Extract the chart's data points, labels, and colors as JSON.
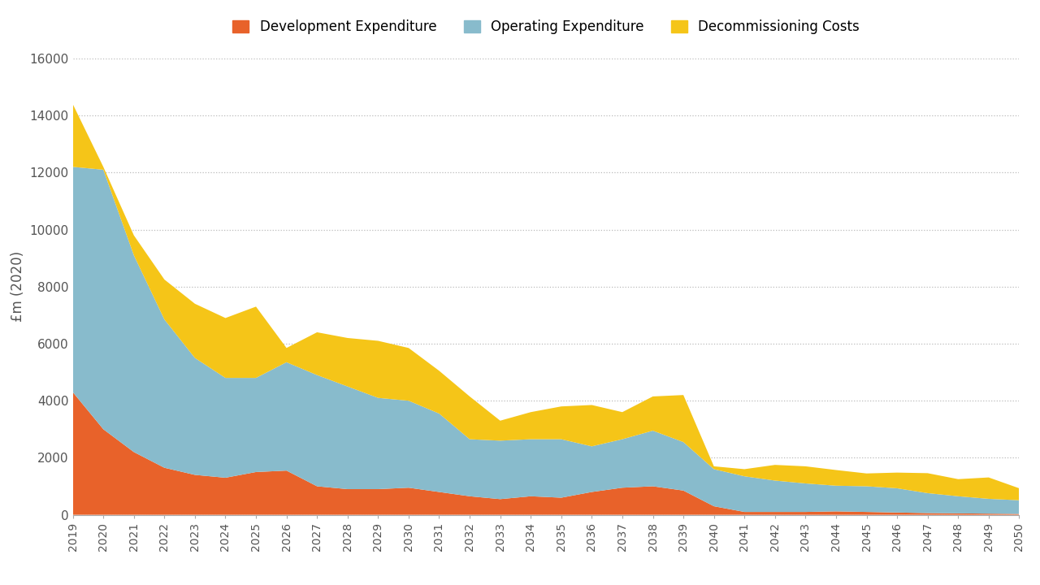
{
  "years": [
    2019,
    2020,
    2021,
    2022,
    2023,
    2024,
    2025,
    2026,
    2027,
    2028,
    2029,
    2030,
    2031,
    2032,
    2033,
    2034,
    2035,
    2036,
    2037,
    2038,
    2039,
    2040,
    2041,
    2042,
    2043,
    2044,
    2045,
    2046,
    2047,
    2048,
    2049,
    2050
  ],
  "dev_exp": [
    4300,
    3000,
    2200,
    1650,
    1400,
    1300,
    1500,
    1550,
    1000,
    900,
    900,
    950,
    800,
    650,
    550,
    650,
    600,
    800,
    950,
    1000,
    850,
    300,
    100,
    100,
    100,
    120,
    100,
    80,
    60,
    50,
    40,
    30
  ],
  "op_exp": [
    7900,
    9100,
    6900,
    5200,
    4100,
    3500,
    3300,
    3800,
    3900,
    3600,
    3200,
    3050,
    2750,
    2000,
    2050,
    2000,
    2050,
    1600,
    1700,
    1950,
    1700,
    1300,
    1250,
    1100,
    1000,
    900,
    900,
    850,
    700,
    600,
    520,
    480
  ],
  "decomm": [
    2200,
    100,
    700,
    1400,
    1900,
    2100,
    2500,
    500,
    1500,
    1700,
    2000,
    1850,
    1500,
    1500,
    700,
    950,
    1150,
    1450,
    950,
    1200,
    1650,
    100,
    250,
    550,
    600,
    550,
    450,
    550,
    700,
    600,
    750,
    420
  ],
  "dev_color": "#E8622A",
  "op_color": "#88BBCC",
  "decomm_color": "#F5C518",
  "dev_label": "Development Expenditure",
  "op_label": "Operating Expenditure",
  "decomm_label": "Decommissioning Costs",
  "ylabel": "£m (2020)",
  "ylim": [
    0,
    16000
  ],
  "yticks": [
    0,
    2000,
    4000,
    6000,
    8000,
    10000,
    12000,
    14000,
    16000
  ],
  "background_color": "#FFFFFF",
  "grid_color": "#BBBBBB"
}
